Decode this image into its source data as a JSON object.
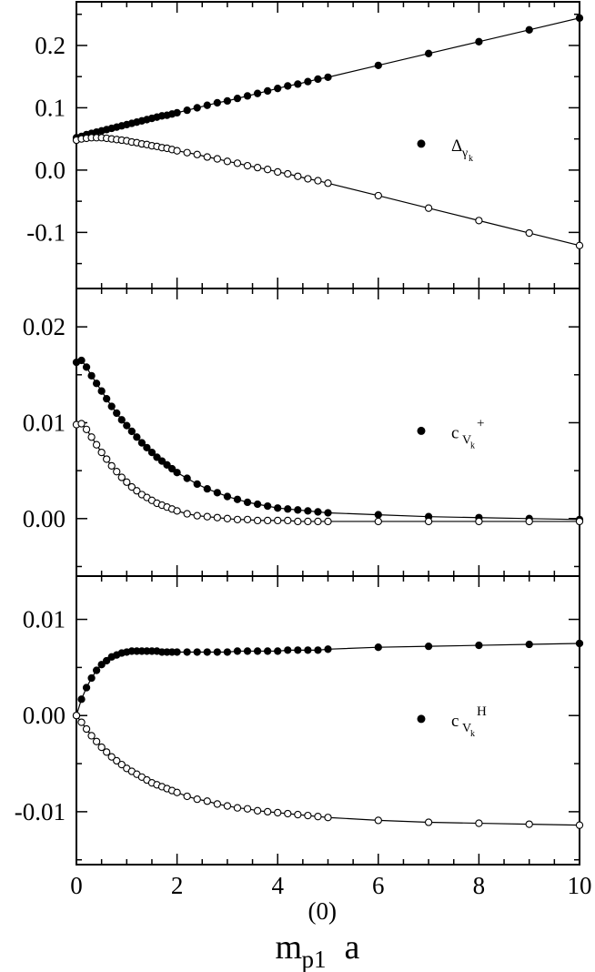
{
  "chart_data": [
    {
      "type": "line",
      "xlim": [
        0,
        10
      ],
      "ylim": [
        -0.19,
        0.27
      ],
      "yticks": [
        -0.1,
        0.0,
        0.1,
        0.2
      ],
      "ytick_labels": [
        "-0.1",
        "0.0",
        "0.1",
        "0.2"
      ],
      "markers": "filled and open circles",
      "grid": false,
      "legend_position": "right-middle",
      "legend": {
        "symbol": "filled-circle",
        "main": "Δ",
        "sub": "γ",
        "subsub": "k",
        "sup": ""
      },
      "series": [
        {
          "marker": "filled",
          "x": [
            0,
            0.1,
            0.2,
            0.3,
            0.4,
            0.5,
            0.6,
            0.7,
            0.8,
            0.9,
            1.0,
            1.1,
            1.2,
            1.3,
            1.4,
            1.5,
            1.6,
            1.7,
            1.8,
            1.9,
            2.0,
            2.2,
            2.4,
            2.6,
            2.8,
            3.0,
            3.2,
            3.4,
            3.6,
            3.8,
            4.0,
            4.2,
            4.4,
            4.6,
            4.8,
            5.0,
            6,
            7,
            8,
            9,
            10
          ],
          "y": [
            0.052,
            0.054,
            0.057,
            0.059,
            0.061,
            0.063,
            0.065,
            0.067,
            0.069,
            0.071,
            0.073,
            0.075,
            0.077,
            0.079,
            0.081,
            0.083,
            0.085,
            0.087,
            0.088,
            0.09,
            0.092,
            0.096,
            0.1,
            0.104,
            0.108,
            0.111,
            0.115,
            0.119,
            0.123,
            0.127,
            0.131,
            0.135,
            0.138,
            0.142,
            0.146,
            0.149,
            0.168,
            0.187,
            0.206,
            0.225,
            0.244
          ]
        },
        {
          "marker": "open",
          "x": [
            0,
            0.1,
            0.2,
            0.3,
            0.4,
            0.5,
            0.6,
            0.7,
            0.8,
            0.9,
            1.0,
            1.1,
            1.2,
            1.3,
            1.4,
            1.5,
            1.6,
            1.7,
            1.8,
            1.9,
            2.0,
            2.2,
            2.4,
            2.6,
            2.8,
            3.0,
            3.2,
            3.4,
            3.6,
            3.8,
            4.0,
            4.2,
            4.4,
            4.6,
            4.8,
            5.0,
            6,
            7,
            8,
            9,
            10
          ],
          "y": [
            0.048,
            0.05,
            0.051,
            0.052,
            0.052,
            0.052,
            0.051,
            0.05,
            0.049,
            0.048,
            0.047,
            0.045,
            0.044,
            0.042,
            0.041,
            0.039,
            0.038,
            0.036,
            0.035,
            0.033,
            0.031,
            0.028,
            0.025,
            0.021,
            0.018,
            0.014,
            0.011,
            0.007,
            0.004,
            0.001,
            -0.003,
            -0.006,
            -0.01,
            -0.014,
            -0.017,
            -0.021,
            -0.041,
            -0.061,
            -0.081,
            -0.101,
            -0.121
          ]
        }
      ]
    },
    {
      "type": "line",
      "xlim": [
        0,
        10
      ],
      "ylim": [
        -0.006,
        0.024
      ],
      "yticks": [
        0.0,
        0.01,
        0.02
      ],
      "ytick_labels": [
        "0.00",
        "0.01",
        "0.02"
      ],
      "markers": "filled and open circles",
      "grid": false,
      "legend_position": "right-middle",
      "legend": {
        "symbol": "filled-circle",
        "main": "c",
        "sub": "V",
        "subsub": "k",
        "sup": "+"
      },
      "series": [
        {
          "marker": "filled",
          "x": [
            0,
            0.1,
            0.2,
            0.3,
            0.4,
            0.5,
            0.6,
            0.7,
            0.8,
            0.9,
            1.0,
            1.1,
            1.2,
            1.3,
            1.4,
            1.5,
            1.6,
            1.7,
            1.8,
            1.9,
            2.0,
            2.2,
            2.4,
            2.6,
            2.8,
            3.0,
            3.2,
            3.4,
            3.6,
            3.8,
            4.0,
            4.2,
            4.4,
            4.6,
            4.8,
            5.0,
            6,
            7,
            8,
            9,
            10
          ],
          "y": [
            0.0163,
            0.0165,
            0.0158,
            0.0149,
            0.0141,
            0.0133,
            0.0125,
            0.0117,
            0.011,
            0.0103,
            0.0097,
            0.0091,
            0.0085,
            0.0079,
            0.0074,
            0.0069,
            0.0064,
            0.006,
            0.0056,
            0.0052,
            0.0048,
            0.0042,
            0.0036,
            0.0031,
            0.0027,
            0.0023,
            0.002,
            0.0017,
            0.0015,
            0.0013,
            0.0011,
            0.001,
            0.0009,
            0.0008,
            0.0007,
            0.0006,
            0.0004,
            0.0002,
            0.0001,
            0.0,
            -0.0001
          ]
        },
        {
          "marker": "open",
          "x": [
            0,
            0.1,
            0.2,
            0.3,
            0.4,
            0.5,
            0.6,
            0.7,
            0.8,
            0.9,
            1.0,
            1.1,
            1.2,
            1.3,
            1.4,
            1.5,
            1.6,
            1.7,
            1.8,
            1.9,
            2.0,
            2.2,
            2.4,
            2.6,
            2.8,
            3.0,
            3.2,
            3.4,
            3.6,
            3.8,
            4.0,
            4.2,
            4.4,
            4.6,
            4.8,
            5.0,
            6,
            7,
            8,
            9,
            10
          ],
          "y": [
            0.0098,
            0.0099,
            0.0093,
            0.0085,
            0.0077,
            0.0069,
            0.0062,
            0.0055,
            0.0049,
            0.0043,
            0.0038,
            0.0033,
            0.0029,
            0.0025,
            0.0022,
            0.0019,
            0.0016,
            0.0014,
            0.0012,
            0.001,
            0.0008,
            0.0005,
            0.0003,
            0.0002,
            0.0001,
            0.0,
            -0.0001,
            -0.0001,
            -0.0002,
            -0.0002,
            -0.0002,
            -0.0002,
            -0.0003,
            -0.0003,
            -0.0003,
            -0.0003,
            -0.0003,
            -0.0003,
            -0.0003,
            -0.0003,
            -0.0003
          ]
        }
      ]
    },
    {
      "type": "line",
      "xlim": [
        0,
        10
      ],
      "ylim": [
        -0.0155,
        0.0145
      ],
      "yticks": [
        -0.01,
        0.0,
        0.01
      ],
      "ytick_labels": [
        "-0.01",
        "0.00",
        "0.01"
      ],
      "xticks": [
        0,
        2,
        4,
        6,
        8,
        10
      ],
      "xtick_labels": [
        "0",
        "2",
        "4",
        "6",
        "8",
        "10"
      ],
      "xlabel": {
        "main": "m",
        "sub": "p1",
        "sup": "(0)",
        "suffix": "a"
      },
      "markers": "filled and open circles",
      "grid": false,
      "legend_position": "right-middle",
      "legend": {
        "symbol": "filled-circle",
        "main": "c",
        "sub": "V",
        "subsub": "k",
        "sup": "H"
      },
      "series": [
        {
          "marker": "filled",
          "x": [
            0,
            0.1,
            0.2,
            0.3,
            0.4,
            0.5,
            0.6,
            0.7,
            0.8,
            0.9,
            1.0,
            1.1,
            1.2,
            1.3,
            1.4,
            1.5,
            1.6,
            1.7,
            1.8,
            1.9,
            2.0,
            2.2,
            2.4,
            2.6,
            2.8,
            3.0,
            3.2,
            3.4,
            3.6,
            3.8,
            4.0,
            4.2,
            4.4,
            4.6,
            4.8,
            5.0,
            6,
            7,
            8,
            9,
            10
          ],
          "y": [
            0.0,
            0.0017,
            0.0029,
            0.0039,
            0.0047,
            0.0053,
            0.0057,
            0.0061,
            0.0063,
            0.0065,
            0.0066,
            0.0067,
            0.0067,
            0.0067,
            0.0067,
            0.0067,
            0.0067,
            0.0066,
            0.0066,
            0.0066,
            0.0066,
            0.0066,
            0.0066,
            0.0066,
            0.0066,
            0.0066,
            0.0067,
            0.0067,
            0.0067,
            0.0067,
            0.0067,
            0.0068,
            0.0068,
            0.0068,
            0.0068,
            0.0069,
            0.0071,
            0.0072,
            0.0073,
            0.0074,
            0.0075
          ]
        },
        {
          "marker": "open",
          "x": [
            0,
            0.1,
            0.2,
            0.3,
            0.4,
            0.5,
            0.6,
            0.7,
            0.8,
            0.9,
            1.0,
            1.1,
            1.2,
            1.3,
            1.4,
            1.5,
            1.6,
            1.7,
            1.8,
            1.9,
            2.0,
            2.2,
            2.4,
            2.6,
            2.8,
            3.0,
            3.2,
            3.4,
            3.6,
            3.8,
            4.0,
            4.2,
            4.4,
            4.6,
            4.8,
            5.0,
            6,
            7,
            8,
            9,
            10
          ],
          "y": [
            0.0,
            -0.0007,
            -0.0014,
            -0.0021,
            -0.0027,
            -0.0033,
            -0.0038,
            -0.0043,
            -0.0047,
            -0.0051,
            -0.0055,
            -0.0058,
            -0.0061,
            -0.0064,
            -0.0067,
            -0.007,
            -0.0072,
            -0.0074,
            -0.0076,
            -0.0078,
            -0.008,
            -0.0084,
            -0.0087,
            -0.0089,
            -0.0092,
            -0.0094,
            -0.0096,
            -0.0097,
            -0.0099,
            -0.01,
            -0.0101,
            -0.0102,
            -0.0103,
            -0.0104,
            -0.0105,
            -0.0106,
            -0.0109,
            -0.0111,
            -0.0112,
            -0.0113,
            -0.0114
          ]
        }
      ]
    }
  ]
}
